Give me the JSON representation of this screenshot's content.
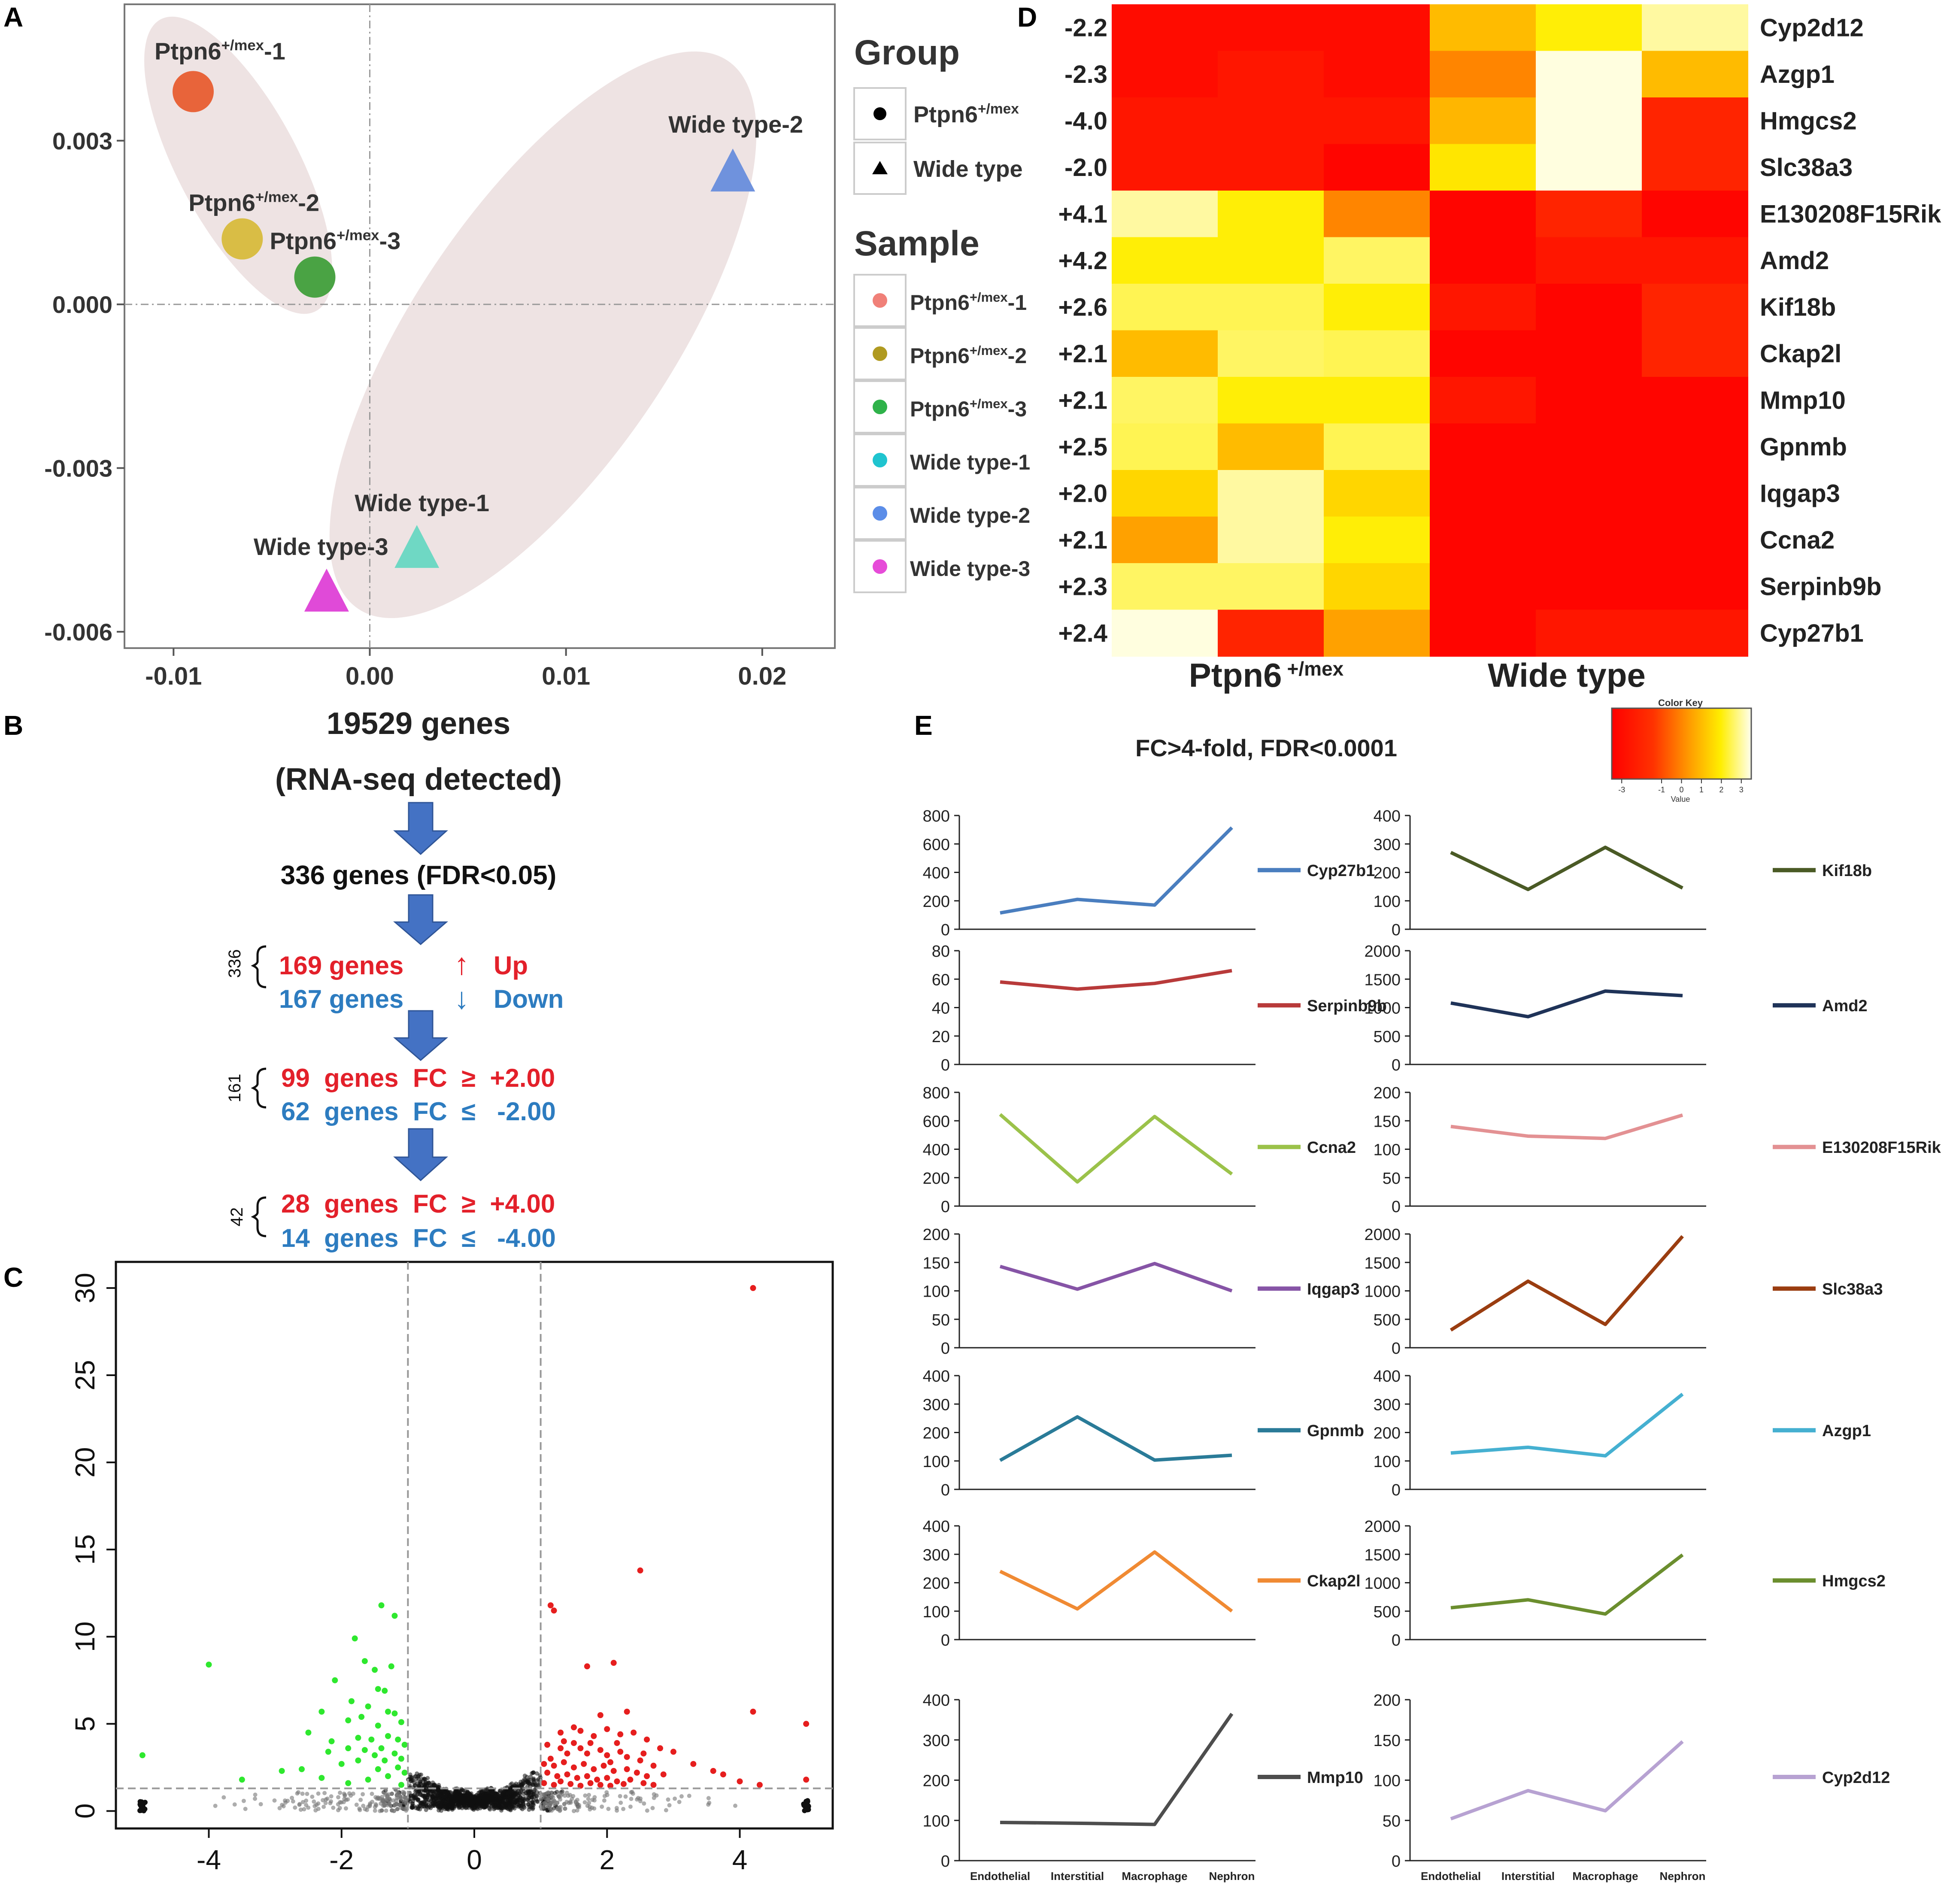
{
  "panel_labels": [
    "A",
    "B",
    "C",
    "D",
    "E"
  ],
  "chart_data": [
    {
      "panel": "A",
      "type": "scatter",
      "x_ticks": [
        "-0.01",
        "0.00",
        "0.01",
        "0.02"
      ],
      "y_ticks": [
        "0.003",
        "0.000",
        "-0.003",
        "-0.006"
      ],
      "xlim": [
        -0.0125,
        0.0237
      ],
      "ylim": [
        -0.0063,
        0.0055
      ],
      "points": [
        {
          "base": "Ptpn6",
          "sup": "+/mex",
          "suffix": "-1",
          "x": -0.009,
          "y": 0.0039,
          "shape": "circle",
          "color": "#e8643a"
        },
        {
          "base": "Ptpn6",
          "sup": "+/mex",
          "suffix": "-2",
          "x": -0.0065,
          "y": 0.0012,
          "shape": "circle",
          "color": "#d9bd45"
        },
        {
          "base": "Ptpn6",
          "sup": "+/mex",
          "suffix": "-3",
          "x": -0.0028,
          "y": 0.0005,
          "shape": "circle",
          "color": "#4aa344"
        },
        {
          "base": "Wide type-1",
          "sup": "",
          "suffix": "",
          "x": 0.0024,
          "y": -0.0045,
          "shape": "triangle",
          "color": "#6fd8c4"
        },
        {
          "base": "Wide type-2",
          "sup": "",
          "suffix": "",
          "x": 0.0185,
          "y": 0.0024,
          "shape": "triangle",
          "color": "#6f92dd"
        },
        {
          "base": "Wide type-3",
          "sup": "",
          "suffix": "",
          "x": -0.0022,
          "y": -0.0053,
          "shape": "triangle",
          "color": "#e04ad8"
        }
      ],
      "legend_group": {
        "title": "Group",
        "items": [
          {
            "base": "Ptpn6",
            "sup": "+/mex",
            "shape": "circle"
          },
          {
            "base": "Wide type",
            "sup": "",
            "shape": "triangle"
          }
        ]
      },
      "legend_sample": {
        "title": "Sample",
        "items": [
          {
            "base": "Ptpn6",
            "sup": "+/mex",
            "suffix": "-1",
            "color": "#f08078"
          },
          {
            "base": "Ptpn6",
            "sup": "+/mex",
            "suffix": "-2",
            "color": "#b09a20"
          },
          {
            "base": "Ptpn6",
            "sup": "+/mex",
            "suffix": "-3",
            "color": "#2fb24a"
          },
          {
            "base": "Wide type-1",
            "sup": "",
            "suffix": "",
            "color": "#1fc4cf"
          },
          {
            "base": "Wide type-2",
            "sup": "",
            "suffix": "",
            "color": "#5b8de8"
          },
          {
            "base": "Wide type-3",
            "sup": "",
            "suffix": "",
            "color": "#e64bd8"
          }
        ]
      }
    },
    {
      "panel": "C",
      "type": "scatter",
      "x_ticks": [
        "-4",
        "-2",
        "0",
        "2",
        "4"
      ],
      "y_ticks": [
        "0",
        "5",
        "10",
        "15",
        "20",
        "25",
        "30"
      ],
      "xlim": [
        -5.4,
        5.4
      ],
      "ylim": [
        -1,
        31.5
      ],
      "thresholds": {
        "x": [
          -1,
          1
        ],
        "y": 1.3
      },
      "up_points": [
        [
          4.2,
          30
        ],
        [
          1.15,
          11.8
        ],
        [
          1.2,
          11.5
        ],
        [
          2.5,
          13.8
        ],
        [
          2.1,
          8.5
        ],
        [
          1.7,
          8.3
        ],
        [
          4.2,
          5.7
        ],
        [
          5.0,
          5.0
        ],
        [
          1.9,
          5.5
        ],
        [
          2.3,
          5.7
        ],
        [
          1.3,
          4.5
        ],
        [
          1.5,
          4.8
        ],
        [
          1.6,
          4.6
        ],
        [
          1.8,
          4.3
        ],
        [
          2.0,
          4.7
        ],
        [
          2.2,
          4.4
        ],
        [
          2.4,
          4.5
        ],
        [
          2.6,
          4.1
        ],
        [
          2.8,
          3.6
        ],
        [
          3.0,
          3.4
        ],
        [
          1.1,
          3.8
        ],
        [
          1.3,
          3.6
        ],
        [
          1.4,
          3.3
        ],
        [
          1.6,
          3.6
        ],
        [
          1.7,
          3.3
        ],
        [
          1.9,
          3.5
        ],
        [
          2.0,
          3.2
        ],
        [
          2.2,
          3.4
        ],
        [
          2.3,
          3.1
        ],
        [
          2.5,
          2.9
        ],
        [
          2.7,
          2.6
        ],
        [
          3.3,
          2.7
        ],
        [
          1.05,
          2.7
        ],
        [
          1.2,
          2.6
        ],
        [
          1.35,
          2.8
        ],
        [
          1.5,
          2.5
        ],
        [
          1.65,
          2.7
        ],
        [
          1.8,
          2.4
        ],
        [
          1.95,
          2.6
        ],
        [
          2.1,
          2.3
        ],
        [
          2.3,
          2.4
        ],
        [
          2.45,
          2.2
        ],
        [
          2.6,
          2.0
        ],
        [
          2.85,
          2.1
        ],
        [
          1.1,
          2.2
        ],
        [
          1.25,
          2.0
        ],
        [
          1.4,
          2.1
        ],
        [
          1.55,
          1.9
        ],
        [
          1.7,
          2.0
        ],
        [
          1.85,
          1.8
        ],
        [
          2.0,
          1.9
        ],
        [
          2.15,
          1.7
        ],
        [
          2.35,
          1.8
        ],
        [
          2.55,
          1.6
        ],
        [
          3.6,
          2.3
        ],
        [
          3.75,
          2.1
        ],
        [
          4.0,
          1.7
        ],
        [
          5.0,
          1.8
        ],
        [
          1.05,
          1.6
        ],
        [
          1.2,
          1.5
        ],
        [
          1.3,
          1.7
        ],
        [
          1.45,
          1.55
        ],
        [
          1.6,
          1.45
        ],
        [
          1.75,
          1.6
        ],
        [
          1.9,
          1.5
        ],
        [
          2.05,
          1.45
        ],
        [
          2.25,
          1.55
        ],
        [
          2.7,
          1.5
        ],
        [
          4.3,
          1.5
        ],
        [
          1.15,
          3.0
        ],
        [
          1.5,
          3.9
        ],
        [
          1.75,
          3.9
        ],
        [
          2.15,
          3.9
        ],
        [
          1.35,
          4.0
        ],
        [
          2.05,
          2.8
        ],
        [
          2.55,
          3.3
        ]
      ],
      "down_points": [
        [
          -1.4,
          11.8
        ],
        [
          -1.2,
          11.2
        ],
        [
          -4.0,
          8.4
        ],
        [
          -1.8,
          9.9
        ],
        [
          -1.65,
          8.6
        ],
        [
          -1.5,
          8.1
        ],
        [
          -1.25,
          8.3
        ],
        [
          -2.1,
          7.5
        ],
        [
          -1.45,
          7.0
        ],
        [
          -1.35,
          6.9
        ],
        [
          -1.85,
          6.3
        ],
        [
          -1.6,
          6.0
        ],
        [
          -1.3,
          5.7
        ],
        [
          -2.3,
          5.7
        ],
        [
          -1.7,
          5.4
        ],
        [
          -1.2,
          5.6
        ],
        [
          -1.1,
          5.1
        ],
        [
          -1.9,
          5.2
        ],
        [
          -1.45,
          4.9
        ],
        [
          -2.5,
          4.5
        ],
        [
          -1.3,
          4.3
        ],
        [
          -1.75,
          4.2
        ],
        [
          -2.15,
          4.0
        ],
        [
          -1.55,
          4.1
        ],
        [
          -1.15,
          4.1
        ],
        [
          -1.05,
          3.8
        ],
        [
          -1.4,
          3.6
        ],
        [
          -1.65,
          3.5
        ],
        [
          -1.9,
          3.6
        ],
        [
          -2.2,
          3.4
        ],
        [
          -1.2,
          3.3
        ],
        [
          -1.5,
          3.2
        ],
        [
          -1.1,
          3.0
        ],
        [
          -1.35,
          2.9
        ],
        [
          -1.75,
          2.9
        ],
        [
          -2.0,
          2.7
        ],
        [
          -1.15,
          2.5
        ],
        [
          -1.45,
          2.4
        ],
        [
          -2.6,
          2.4
        ],
        [
          -2.9,
          2.3
        ],
        [
          -1.05,
          2.2
        ],
        [
          -1.3,
          2.0
        ],
        [
          -3.5,
          1.8
        ],
        [
          -5.0,
          3.2
        ],
        [
          -1.6,
          1.8
        ],
        [
          -1.9,
          1.6
        ],
        [
          -2.3,
          1.9
        ],
        [
          -1.1,
          1.5
        ]
      ]
    },
    {
      "panel": "D",
      "type": "heatmap",
      "rows": [
        "Cyp2d12",
        "Azgp1",
        "Hmgcs2",
        "Slc38a3",
        "E130208F15Rik",
        "Amd2",
        "Kif18b",
        "Ckap2l",
        "Mmp10",
        "Gpnmb",
        "Iqgap3",
        "Ccna2",
        "Serpinb9b",
        "Cyp27b1"
      ],
      "fold_changes": [
        "-2.2",
        "-2.3",
        "-4.0",
        "-2.0",
        "+4.1",
        "+4.2",
        "+2.6",
        "+2.1",
        "+2.1",
        "+2.5",
        "+2.0",
        "+2.1",
        "+2.3",
        "+2.4"
      ],
      "values": [
        [
          -3,
          -3,
          -3,
          1,
          2,
          3
        ],
        [
          -3,
          -2.6,
          -3,
          0,
          3.4,
          1
        ],
        [
          -2.6,
          -2.6,
          -2.6,
          0.9,
          3.4,
          -2
        ],
        [
          -2.6,
          -2.6,
          -3.3,
          1.8,
          3.4,
          -2
        ],
        [
          3,
          2,
          0,
          -3.3,
          -2,
          -3.3
        ],
        [
          2,
          2,
          2.6,
          -3.3,
          -2.6,
          -2.6
        ],
        [
          2.5,
          2.5,
          2,
          -2.6,
          -3.3,
          -2
        ],
        [
          1,
          2.6,
          2.5,
          -3.3,
          -3.3,
          -2
        ],
        [
          2.6,
          2,
          2,
          -2.6,
          -3.3,
          -3.3
        ],
        [
          2.5,
          1,
          2.5,
          -3.3,
          -3.3,
          -3.3
        ],
        [
          1.5,
          3,
          1.5,
          -3.3,
          -3.3,
          -3.3
        ],
        [
          0.5,
          3,
          2,
          -3.3,
          -3.3,
          -3.3
        ],
        [
          2.6,
          2.6,
          1.5,
          -3.3,
          -3.3,
          -3.3
        ],
        [
          3.4,
          -2,
          0.5,
          -3.3,
          -2.6,
          -2.6
        ]
      ],
      "group_left": {
        "base": "Ptpn6",
        "sup": "+/mex"
      },
      "group_right": "Wide type",
      "color_key": {
        "title": "Color Key",
        "xlabel": "Value",
        "ticks": [
          "-3",
          "-1",
          "0",
          "1",
          "2",
          "3"
        ],
        "range": [
          -3.5,
          3.5
        ]
      }
    },
    {
      "panel": "E",
      "type": "line",
      "title": "FC>4-fold, FDR<0.0001",
      "categories": [
        "Endothelial",
        "Interstitial",
        "Macrophage",
        "Nephron"
      ],
      "series": [
        {
          "name": "Cyp27b1",
          "color": "#4a7ebf",
          "ylim": [
            0,
            800
          ],
          "ticks": [
            "0",
            "200",
            "400",
            "600",
            "800"
          ],
          "values": [
            115,
            210,
            170,
            715
          ]
        },
        {
          "name": "Serpinb9b",
          "color": "#b83a3a",
          "ylim": [
            0,
            80
          ],
          "ticks": [
            "0",
            "20",
            "40",
            "60",
            "80"
          ],
          "values": [
            58,
            53,
            57,
            66
          ]
        },
        {
          "name": "Ccna2",
          "color": "#9bc24a",
          "ylim": [
            0,
            800
          ],
          "ticks": [
            "0",
            "200",
            "400",
            "600",
            "800"
          ],
          "values": [
            645,
            170,
            630,
            225
          ]
        },
        {
          "name": "Iqgap3",
          "color": "#8654a6",
          "ylim": [
            0,
            200
          ],
          "ticks": [
            "0",
            "50",
            "100",
            "150",
            "200"
          ],
          "values": [
            143,
            103,
            148,
            100
          ]
        },
        {
          "name": "Gpnmb",
          "color": "#2a7b98",
          "ylim": [
            0,
            400
          ],
          "ticks": [
            "0",
            "100",
            "200",
            "300",
            "400"
          ],
          "values": [
            102,
            255,
            103,
            120
          ]
        },
        {
          "name": "Ckap2l",
          "color": "#f08a33",
          "ylim": [
            0,
            400
          ],
          "ticks": [
            "0",
            "100",
            "200",
            "300",
            "400"
          ],
          "values": [
            240,
            108,
            308,
            100
          ]
        },
        {
          "name": "Mmp10",
          "color": "#4d4d4d",
          "ylim": [
            0,
            400
          ],
          "ticks": [
            "0",
            "100",
            "200",
            "300",
            "400"
          ],
          "values": [
            95,
            93,
            90,
            365
          ]
        },
        {
          "name": "Kif18b",
          "color": "#4a5a25",
          "ylim": [
            0,
            400
          ],
          "ticks": [
            "0",
            "100",
            "200",
            "300",
            "400"
          ],
          "values": [
            270,
            140,
            288,
            145
          ]
        },
        {
          "name": "Amd2",
          "color": "#1f3358",
          "ylim": [
            0,
            2000
          ],
          "ticks": [
            "0",
            "500",
            "1000",
            "1500",
            "2000"
          ],
          "values": [
            1080,
            840,
            1290,
            1210
          ]
        },
        {
          "name": "E130208F15Rik",
          "color": "#e39193",
          "ylim": [
            0,
            200
          ],
          "ticks": [
            "0",
            "50",
            "100",
            "150",
            "200"
          ],
          "values": [
            140,
            123,
            119,
            160
          ]
        },
        {
          "name": "Slc38a3",
          "color": "#9a3d10",
          "ylim": [
            0,
            2000
          ],
          "ticks": [
            "0",
            "500",
            "1000",
            "1500",
            "2000"
          ],
          "values": [
            310,
            1170,
            410,
            1960
          ]
        },
        {
          "name": "Azgp1",
          "color": "#45b0d1",
          "ylim": [
            0,
            400
          ],
          "ticks": [
            "0",
            "100",
            "200",
            "300",
            "400"
          ],
          "values": [
            128,
            148,
            118,
            335
          ]
        },
        {
          "name": "Hmgcs2",
          "color": "#6b8e2e",
          "ylim": [
            0,
            2000
          ],
          "ticks": [
            "0",
            "500",
            "1000",
            "1500",
            "2000"
          ],
          "values": [
            560,
            700,
            450,
            1490
          ]
        },
        {
          "name": "Cyp2d12",
          "color": "#b7a2d2",
          "ylim": [
            0,
            200
          ],
          "ticks": [
            "0",
            "50",
            "100",
            "150",
            "200"
          ],
          "values": [
            52,
            87,
            62,
            148
          ]
        }
      ]
    }
  ],
  "panelB": {
    "total_genes": "19529 genes",
    "detected": "(RNA-seq detected)",
    "fdr_genes": "336 genes (FDR<0.05)",
    "groups": [
      {
        "bracket": "336",
        "up_text": "169 genes",
        "down_text": "167 genes",
        "up_tag": "Up",
        "down_tag": "Down",
        "up_arrow": "↑",
        "down_arrow": "↓"
      },
      {
        "bracket": "161",
        "up_text": "99  genes  FC  ≥  +2.00",
        "down_text": "62  genes  FC  ≤   -2.00"
      },
      {
        "bracket": "42",
        "up_text": "28  genes  FC  ≥  +4.00",
        "down_text": "14  genes  FC  ≤   -4.00"
      }
    ],
    "up_color": "#e3202a",
    "down_color": "#2d7cc0",
    "arrow_color": "#4472c4"
  }
}
